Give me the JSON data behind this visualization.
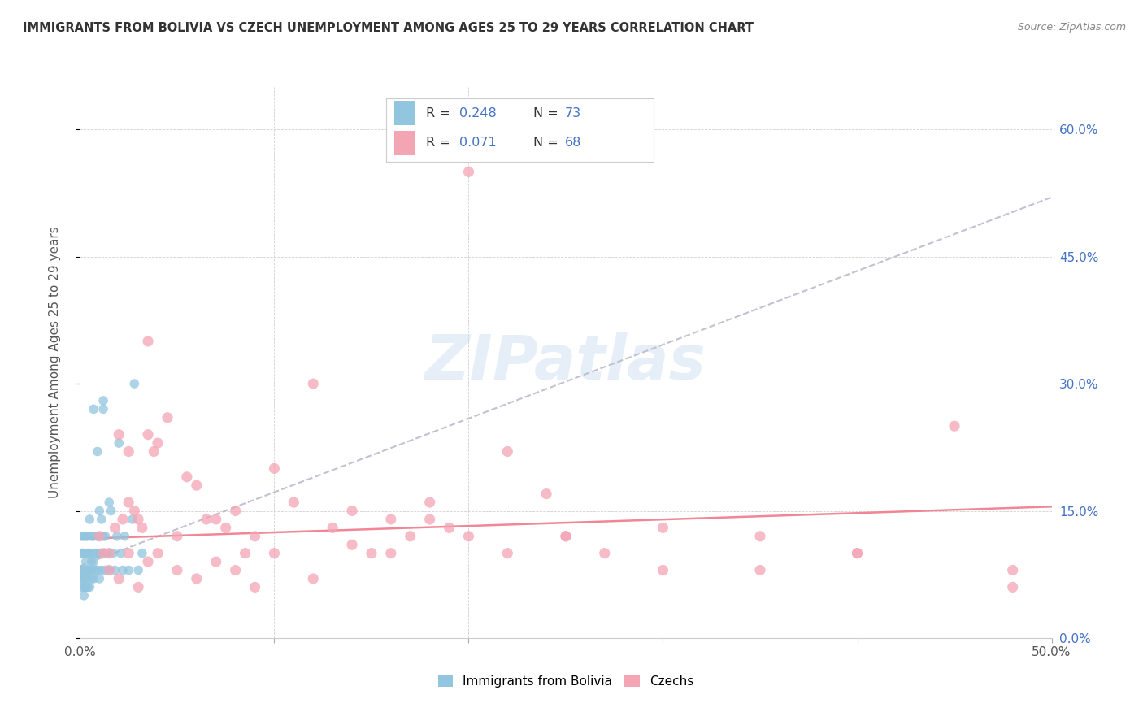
{
  "title": "IMMIGRANTS FROM BOLIVIA VS CZECH UNEMPLOYMENT AMONG AGES 25 TO 29 YEARS CORRELATION CHART",
  "source": "Source: ZipAtlas.com",
  "ylabel": "Unemployment Among Ages 25 to 29 years",
  "xlim": [
    0.0,
    0.5
  ],
  "ylim": [
    0.0,
    0.65
  ],
  "yticks_right": [
    0.0,
    0.15,
    0.3,
    0.45,
    0.6
  ],
  "yticklabels_right": [
    "0.0%",
    "15.0%",
    "30.0%",
    "45.0%",
    "60.0%"
  ],
  "legend_R1": "0.248",
  "legend_N1": "73",
  "legend_R2": "0.071",
  "legend_N2": "68",
  "color_bolivia": "#92C5DE",
  "color_czech": "#F4A5B4",
  "color_trendline_bolivia": "#BBBBCC",
  "color_trendline_czech": "#F08090",
  "watermark": "ZIPatlas",
  "bolivia_trend": [
    0.0,
    0.5,
    0.085,
    0.52
  ],
  "czech_trend": [
    0.0,
    0.5,
    0.117,
    0.155
  ],
  "bolivia_x": [
    0.0008,
    0.001,
    0.001,
    0.001,
    0.0012,
    0.0015,
    0.0015,
    0.002,
    0.002,
    0.002,
    0.002,
    0.0025,
    0.003,
    0.003,
    0.003,
    0.003,
    0.0035,
    0.004,
    0.004,
    0.004,
    0.004,
    0.005,
    0.005,
    0.005,
    0.005,
    0.006,
    0.006,
    0.006,
    0.007,
    0.007,
    0.007,
    0.008,
    0.008,
    0.009,
    0.009,
    0.01,
    0.01,
    0.01,
    0.011,
    0.011,
    0.012,
    0.012,
    0.013,
    0.013,
    0.014,
    0.015,
    0.015,
    0.016,
    0.017,
    0.018,
    0.019,
    0.02,
    0.021,
    0.022,
    0.023,
    0.025,
    0.027,
    0.028,
    0.03,
    0.032,
    0.001,
    0.0015,
    0.002,
    0.003,
    0.004,
    0.005,
    0.006,
    0.007,
    0.008,
    0.009,
    0.01,
    0.011,
    0.012
  ],
  "bolivia_y": [
    0.06,
    0.08,
    0.1,
    0.12,
    0.07,
    0.08,
    0.1,
    0.06,
    0.08,
    0.1,
    0.12,
    0.07,
    0.06,
    0.08,
    0.09,
    0.12,
    0.07,
    0.06,
    0.08,
    0.1,
    0.12,
    0.06,
    0.08,
    0.1,
    0.14,
    0.07,
    0.09,
    0.12,
    0.07,
    0.09,
    0.12,
    0.08,
    0.1,
    0.08,
    0.12,
    0.07,
    0.1,
    0.15,
    0.1,
    0.14,
    0.27,
    0.28,
    0.08,
    0.12,
    0.1,
    0.08,
    0.16,
    0.15,
    0.1,
    0.08,
    0.12,
    0.23,
    0.1,
    0.08,
    0.12,
    0.08,
    0.14,
    0.3,
    0.08,
    0.1,
    0.1,
    0.07,
    0.05,
    0.06,
    0.08,
    0.1,
    0.08,
    0.27,
    0.1,
    0.22,
    0.1,
    0.08,
    0.12
  ],
  "czech_x": [
    0.01,
    0.012,
    0.015,
    0.018,
    0.02,
    0.022,
    0.025,
    0.028,
    0.03,
    0.032,
    0.035,
    0.038,
    0.04,
    0.045,
    0.05,
    0.055,
    0.06,
    0.065,
    0.07,
    0.075,
    0.08,
    0.085,
    0.09,
    0.1,
    0.11,
    0.12,
    0.13,
    0.14,
    0.15,
    0.16,
    0.17,
    0.18,
    0.19,
    0.2,
    0.22,
    0.24,
    0.25,
    0.27,
    0.3,
    0.35,
    0.4,
    0.45,
    0.48,
    0.015,
    0.02,
    0.025,
    0.03,
    0.035,
    0.04,
    0.05,
    0.06,
    0.07,
    0.08,
    0.09,
    0.1,
    0.12,
    0.14,
    0.16,
    0.18,
    0.2,
    0.22,
    0.25,
    0.3,
    0.35,
    0.4,
    0.48,
    0.025,
    0.035
  ],
  "czech_y": [
    0.12,
    0.1,
    0.1,
    0.13,
    0.24,
    0.14,
    0.16,
    0.15,
    0.14,
    0.13,
    0.35,
    0.22,
    0.23,
    0.26,
    0.12,
    0.19,
    0.18,
    0.14,
    0.14,
    0.13,
    0.15,
    0.1,
    0.12,
    0.2,
    0.16,
    0.3,
    0.13,
    0.15,
    0.1,
    0.14,
    0.12,
    0.16,
    0.13,
    0.55,
    0.22,
    0.17,
    0.12,
    0.1,
    0.13,
    0.12,
    0.1,
    0.25,
    0.08,
    0.08,
    0.07,
    0.1,
    0.06,
    0.09,
    0.1,
    0.08,
    0.07,
    0.09,
    0.08,
    0.06,
    0.1,
    0.07,
    0.11,
    0.1,
    0.14,
    0.12,
    0.1,
    0.12,
    0.08,
    0.08,
    0.1,
    0.06,
    0.22,
    0.24
  ]
}
